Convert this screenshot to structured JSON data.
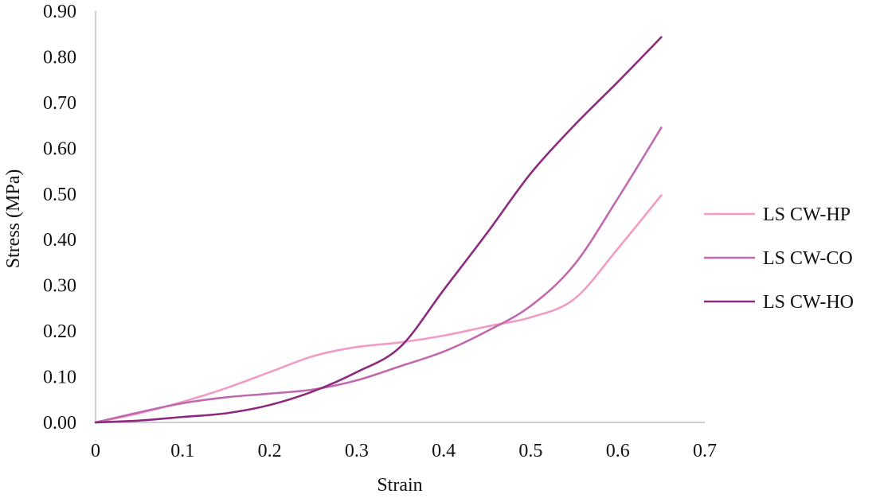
{
  "chart_data": {
    "type": "line",
    "title": "",
    "xlabel": "Strain",
    "ylabel": "Stress (MPa)",
    "xlim": [
      0,
      0.7
    ],
    "ylim": [
      0,
      0.9
    ],
    "x_ticks": [
      "0",
      "0.1",
      "0.2",
      "0.3",
      "0.4",
      "0.5",
      "0.6",
      "0.7"
    ],
    "y_ticks": [
      "0.00",
      "0.10",
      "0.20",
      "0.30",
      "0.40",
      "0.50",
      "0.60",
      "0.70",
      "0.80",
      "0.90"
    ],
    "grid": false,
    "legend_position": "right",
    "series": [
      {
        "name": "LS CW-HP",
        "color": "#F09CC4",
        "x": [
          0,
          0.05,
          0.1,
          0.15,
          0.2,
          0.25,
          0.3,
          0.35,
          0.4,
          0.45,
          0.5,
          0.55,
          0.6,
          0.65
        ],
        "y": [
          0,
          0.02,
          0.045,
          0.075,
          0.11,
          0.145,
          0.165,
          0.175,
          0.19,
          0.21,
          0.23,
          0.27,
          0.38,
          0.497
        ]
      },
      {
        "name": "LS CW-CO",
        "color": "#C268AE",
        "x": [
          0,
          0.05,
          0.1,
          0.15,
          0.2,
          0.25,
          0.3,
          0.35,
          0.4,
          0.45,
          0.5,
          0.55,
          0.6,
          0.65
        ],
        "y": [
          0,
          0.022,
          0.042,
          0.055,
          0.063,
          0.072,
          0.092,
          0.123,
          0.155,
          0.2,
          0.255,
          0.345,
          0.49,
          0.645
        ]
      },
      {
        "name": "LS CW-HO",
        "color": "#8E2A7E",
        "x": [
          0,
          0.05,
          0.1,
          0.15,
          0.2,
          0.25,
          0.3,
          0.35,
          0.4,
          0.45,
          0.5,
          0.55,
          0.6,
          0.65
        ],
        "y": [
          0,
          0.004,
          0.012,
          0.02,
          0.038,
          0.068,
          0.11,
          0.165,
          0.29,
          0.415,
          0.545,
          0.65,
          0.745,
          0.843
        ]
      }
    ]
  }
}
